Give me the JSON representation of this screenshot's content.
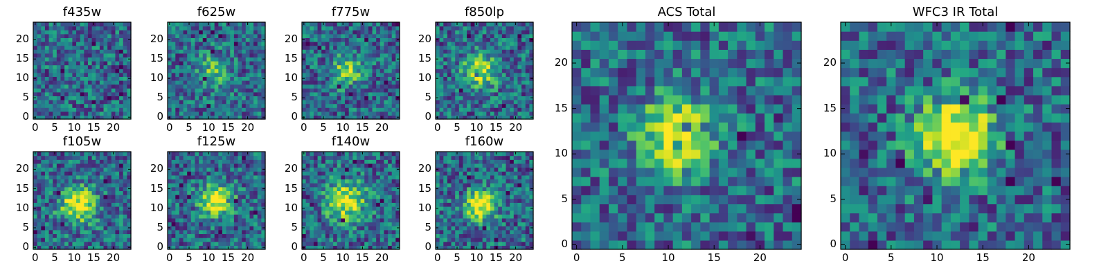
{
  "chart_data": [
    {
      "type": "heatmap",
      "title": "f435w",
      "grid": false,
      "colormap": "viridis",
      "xlim": [
        -0.5,
        24.5
      ],
      "ylim": [
        -0.5,
        24.5
      ],
      "xticks": [
        0,
        5,
        10,
        15,
        20
      ],
      "yticks": [
        0,
        5,
        10,
        15,
        20
      ],
      "source": {
        "center": null,
        "amplitude": 0.1,
        "sigma": 3
      }
    },
    {
      "type": "heatmap",
      "title": "f625w",
      "grid": false,
      "colormap": "viridis",
      "xlim": [
        -0.5,
        24.5
      ],
      "ylim": [
        -0.5,
        24.5
      ],
      "xticks": [
        0,
        5,
        10,
        15,
        20
      ],
      "yticks": [
        0,
        5,
        10,
        15,
        20
      ],
      "source": {
        "center": [
          11,
          12
        ],
        "amplitude": 0.35,
        "sigma": 3
      }
    },
    {
      "type": "heatmap",
      "title": "f775w",
      "grid": false,
      "colormap": "viridis",
      "xlim": [
        -0.5,
        24.5
      ],
      "ylim": [
        -0.5,
        24.5
      ],
      "xticks": [
        0,
        5,
        10,
        15,
        20
      ],
      "yticks": [
        0,
        5,
        10,
        15,
        20
      ],
      "source": {
        "center": [
          11,
          12
        ],
        "amplitude": 0.5,
        "sigma": 2.6
      }
    },
    {
      "type": "heatmap",
      "title": "f850lp",
      "grid": false,
      "colormap": "viridis",
      "xlim": [
        -0.5,
        24.5
      ],
      "ylim": [
        -0.5,
        24.5
      ],
      "xticks": [
        0,
        5,
        10,
        15,
        20
      ],
      "yticks": [
        0,
        5,
        10,
        15,
        20
      ],
      "source": {
        "center": [
          11,
          12
        ],
        "amplitude": 0.55,
        "sigma": 3
      }
    },
    {
      "type": "heatmap",
      "title": "f105w",
      "grid": false,
      "colormap": "viridis",
      "xlim": [
        -0.5,
        24.5
      ],
      "ylim": [
        -0.5,
        24.5
      ],
      "xticks": [
        0,
        5,
        10,
        15,
        20
      ],
      "yticks": [
        0,
        5,
        10,
        15,
        20
      ],
      "source": {
        "center": [
          11,
          11
        ],
        "amplitude": 0.65,
        "sigma": 3.2
      }
    },
    {
      "type": "heatmap",
      "title": "f125w",
      "grid": false,
      "colormap": "viridis",
      "xlim": [
        -0.5,
        24.5
      ],
      "ylim": [
        -0.5,
        24.5
      ],
      "xticks": [
        0,
        5,
        10,
        15,
        20
      ],
      "yticks": [
        0,
        5,
        10,
        15,
        20
      ],
      "source": {
        "center": [
          12,
          12
        ],
        "amplitude": 0.75,
        "sigma": 2.8
      }
    },
    {
      "type": "heatmap",
      "title": "f140w",
      "grid": false,
      "colormap": "viridis",
      "xlim": [
        -0.5,
        24.5
      ],
      "ylim": [
        -0.5,
        24.5
      ],
      "xticks": [
        0,
        5,
        10,
        15,
        20
      ],
      "yticks": [
        0,
        5,
        10,
        15,
        20
      ],
      "source": {
        "center": [
          11,
          12
        ],
        "amplitude": 0.6,
        "sigma": 3.6
      }
    },
    {
      "type": "heatmap",
      "title": "f160w",
      "grid": false,
      "colormap": "viridis",
      "xlim": [
        -0.5,
        24.5
      ],
      "ylim": [
        -0.5,
        24.5
      ],
      "xticks": [
        0,
        5,
        10,
        15,
        20
      ],
      "yticks": [
        0,
        5,
        10,
        15,
        20
      ],
      "source": {
        "center": [
          11,
          11
        ],
        "amplitude": 0.8,
        "sigma": 2.6
      }
    },
    {
      "type": "heatmap",
      "title": "ACS Total",
      "grid": false,
      "colormap": "viridis",
      "xlim": [
        -0.5,
        24.5
      ],
      "ylim": [
        -0.5,
        24.5
      ],
      "xticks": [
        0,
        5,
        10,
        15,
        20
      ],
      "yticks": [
        0,
        5,
        10,
        15,
        20
      ],
      "source": {
        "center": [
          11,
          12
        ],
        "amplitude": 0.6,
        "sigma": 3
      }
    },
    {
      "type": "heatmap",
      "title": "WFC3 IR Total",
      "grid": false,
      "colormap": "viridis",
      "xlim": [
        -0.5,
        24.5
      ],
      "ylim": [
        -0.5,
        24.5
      ],
      "xticks": [
        0,
        5,
        10,
        15,
        20
      ],
      "yticks": [
        0,
        5,
        10,
        15,
        20
      ],
      "source": {
        "center": [
          12,
          12
        ],
        "amplitude": 0.85,
        "sigma": 2.8
      }
    }
  ]
}
